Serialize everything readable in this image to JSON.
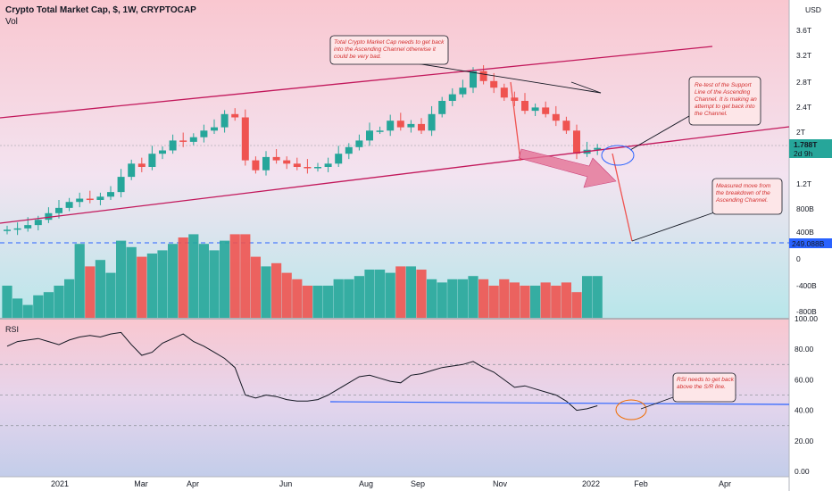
{
  "header": {
    "title": "Crypto Total Market Cap, $, 1W, CRYPTOCAP",
    "volume_label": "Vol"
  },
  "currency_label": "USD",
  "colors": {
    "up": "#26a69a",
    "down": "#ef5350",
    "channel": "#c2185b",
    "rsi": "#131722",
    "rsi_ma": "#2962ff",
    "annotation": "#d32f2f"
  },
  "annotations": {
    "top_note": "Total Crypto Market Cap needs to get back into the Ascending Channel otherwise it could be very bad.",
    "retest_note": "Re-test of the Support Line of the Ascending Channel. It is making an attempt to get back into the Channel.",
    "measured_note": "Measured move from the breakdown of the Ascending Channel.",
    "rsi_note": "RSI needs to get back above the S/R line."
  },
  "chart_data": [
    {
      "type": "candlestick",
      "title": "Crypto Total Market Cap, $, 1W, CRYPTOCAP",
      "y_axis_ticks": [
        "3.6T",
        "3.2T",
        "2.8T",
        "2.4T",
        "2T",
        "1.2T"
      ],
      "price_tags": [
        "1.788T",
        "2d 9h",
        "249.088B"
      ],
      "x_ticks": [
        "2021",
        "Mar",
        "Apr",
        "Jun",
        "Aug",
        "Sep",
        "Nov",
        "2022",
        "Feb",
        "Apr"
      ],
      "close_values_T": [
        0.55,
        0.57,
        0.62,
        0.7,
        0.8,
        0.88,
        0.97,
        1.02,
        1.0,
        1.05,
        1.12,
        1.35,
        1.55,
        1.5,
        1.7,
        1.75,
        1.9,
        1.88,
        1.95,
        2.05,
        2.1,
        2.3,
        2.25,
        1.6,
        1.45,
        1.65,
        1.6,
        1.55,
        1.5,
        1.48,
        1.5,
        1.55,
        1.7,
        1.8,
        1.9,
        2.05,
        2.05,
        2.2,
        2.1,
        2.15,
        2.05,
        2.3,
        2.5,
        2.6,
        2.7,
        2.95,
        2.8,
        2.7,
        2.55,
        2.5,
        2.35,
        2.4,
        2.3,
        2.2,
        2.05,
        1.7,
        1.76,
        1.788
      ]
    },
    {
      "type": "bar",
      "title": "Vol",
      "y_axis_ticks": [
        "400B",
        "0",
        "-400B",
        "-800B"
      ]
    },
    {
      "type": "line",
      "title": "RSI",
      "y_axis_ticks": [
        "100.00",
        "80.00",
        "60.00",
        "40.00",
        "20.00",
        "0.00"
      ],
      "bands": [
        70,
        50,
        30
      ],
      "values": [
        82,
        85,
        86,
        87,
        85,
        83,
        86,
        88,
        89,
        88,
        90,
        91,
        83,
        76,
        78,
        84,
        87,
        90,
        85,
        82,
        78,
        74,
        68,
        50,
        48,
        50,
        49,
        47,
        46,
        46,
        47,
        50,
        54,
        58,
        62,
        63,
        61,
        59,
        58,
        63,
        64,
        66,
        68,
        69,
        70,
        72,
        68,
        65,
        60,
        55,
        56,
        54,
        52,
        50,
        46,
        40,
        41,
        43
      ]
    }
  ]
}
